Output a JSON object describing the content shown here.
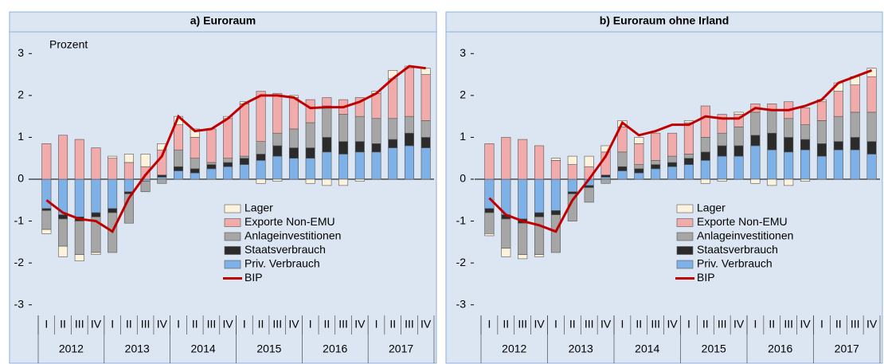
{
  "chart_data": [
    {
      "type": "stacked_bar",
      "title": "a) Euroraum",
      "y_label": "Prozent",
      "ylim": [
        -3.5,
        3.5
      ],
      "yticks": [
        3,
        2,
        1,
        0,
        -1,
        -2,
        -3
      ],
      "grid": false,
      "categories": [
        "I",
        "II",
        "III",
        "IV",
        "I",
        "II",
        "III",
        "IV",
        "I",
        "II",
        "III",
        "IV",
        "I",
        "II",
        "III",
        "IV",
        "I",
        "II",
        "III",
        "IV",
        "I",
        "II",
        "III",
        "IV"
      ],
      "x_groups": [
        "2012",
        "2013",
        "2014",
        "2015",
        "2016",
        "2017"
      ],
      "series": [
        {
          "name": "Priv. Verbrauch",
          "color": "#7eb1e8",
          "values": [
            -0.7,
            -0.85,
            -0.9,
            -0.8,
            -0.7,
            -0.3,
            -0.05,
            0.05,
            0.2,
            0.15,
            0.25,
            0.3,
            0.35,
            0.45,
            0.55,
            0.5,
            0.5,
            0.65,
            0.6,
            0.65,
            0.65,
            0.75,
            0.8,
            0.75
          ]
        },
        {
          "name": "Staatsverbrauch",
          "color": "#2b2b2b",
          "values": [
            -0.05,
            -0.1,
            -0.1,
            -0.1,
            -0.1,
            -0.05,
            0,
            0.05,
            0.1,
            0.1,
            0.1,
            0.1,
            0.15,
            0.15,
            0.25,
            0.25,
            0.25,
            0.35,
            0.3,
            0.25,
            0.2,
            0.2,
            0.3,
            0.25
          ]
        },
        {
          "name": "Anlageinvestitionen",
          "color": "#a6a6a6",
          "values": [
            -0.45,
            -0.65,
            -0.8,
            -0.85,
            -0.95,
            -0.7,
            -0.25,
            -0.1,
            0.4,
            0.25,
            0.05,
            0.1,
            0.05,
            0.3,
            0.3,
            0.45,
            0.6,
            0.75,
            0.65,
            0.6,
            0.6,
            0.5,
            0.4,
            0.4
          ]
        },
        {
          "name": "Exporte Non-EMU",
          "color": "#f2abab",
          "values": [
            0.85,
            1.05,
            0.95,
            0.75,
            0.5,
            0.4,
            0.3,
            0.6,
            0.6,
            0.5,
            0.8,
            0.95,
            1.25,
            1.2,
            0.95,
            0.75,
            0.55,
            0.2,
            0.35,
            0.45,
            0.6,
            0.95,
            1.15,
            1.1
          ]
        },
        {
          "name": "Lager",
          "color": "#fdf3dc",
          "values": [
            -0.1,
            -0.25,
            -0.15,
            -0.05,
            0.05,
            0.2,
            0.3,
            0.15,
            0.2,
            0.2,
            0,
            0.05,
            0.05,
            -0.1,
            -0.05,
            0.05,
            -0.1,
            -0.15,
            -0.15,
            -0.05,
            0.05,
            0.2,
            0.05,
            0.15
          ]
        },
        {
          "name": "BIP",
          "type": "line",
          "color": "#c00000",
          "values": [
            -0.5,
            -0.8,
            -0.95,
            -1.0,
            -1.25,
            -0.45,
            0.1,
            0.55,
            1.5,
            1.15,
            1.2,
            1.45,
            1.8,
            2.0,
            2.0,
            1.95,
            1.7,
            1.72,
            1.72,
            1.85,
            2.05,
            2.4,
            2.7,
            2.65
          ]
        }
      ]
    },
    {
      "type": "stacked_bar",
      "title": "b) Euroraum  ohne  Irland",
      "ylim": [
        -3.5,
        3.5
      ],
      "yticks": [
        3,
        2,
        1,
        0,
        -1,
        -2,
        -3
      ],
      "grid": false,
      "categories": [
        "I",
        "II",
        "III",
        "IV",
        "I",
        "II",
        "III",
        "IV",
        "I",
        "II",
        "III",
        "IV",
        "I",
        "II",
        "III",
        "IV",
        "I",
        "II",
        "III",
        "IV",
        "I",
        "II",
        "III",
        "IV"
      ],
      "x_groups": [
        "2012",
        "2013",
        "2014",
        "2015",
        "2016",
        "2017"
      ],
      "series": [
        {
          "name": "Priv. Verbrauch",
          "color": "#7eb1e8",
          "values": [
            -0.7,
            -0.85,
            -0.95,
            -0.8,
            -0.75,
            -0.3,
            -0.15,
            0.05,
            0.2,
            0.15,
            0.25,
            0.3,
            0.35,
            0.45,
            0.55,
            0.55,
            0.8,
            0.7,
            0.65,
            0.7,
            0.55,
            0.7,
            0.7,
            0.6
          ]
        },
        {
          "name": "Staatsverbrauch",
          "color": "#2b2b2b",
          "values": [
            -0.1,
            -0.1,
            -0.1,
            -0.1,
            -0.1,
            -0.05,
            -0.05,
            0.05,
            0.1,
            0.1,
            0.1,
            0.1,
            0.15,
            0.2,
            0.25,
            0.25,
            0.25,
            0.4,
            0.35,
            0.25,
            0.3,
            0.2,
            0.3,
            0.3
          ]
        },
        {
          "name": "Anlageinvestitionen",
          "color": "#a6a6a6",
          "values": [
            -0.5,
            -0.7,
            -0.75,
            -0.9,
            -0.9,
            -0.65,
            -0.35,
            -0.1,
            0.35,
            0.1,
            0.1,
            0.15,
            0.1,
            0.35,
            0.3,
            0.45,
            0.55,
            0.55,
            0.45,
            0.35,
            0.55,
            0.6,
            0.6,
            0.7
          ]
        },
        {
          "name": "Exporte Non-EMU",
          "color": "#f2abab",
          "values": [
            0.85,
            1.0,
            0.95,
            0.8,
            0.45,
            0.35,
            0.3,
            0.55,
            0.6,
            0.5,
            0.65,
            0.55,
            0.75,
            0.75,
            0.45,
            0.3,
            0.2,
            0.15,
            0.4,
            0.4,
            0.45,
            0.6,
            0.65,
            0.85
          ]
        },
        {
          "name": "Lager",
          "color": "#fdf3dc",
          "values": [
            -0.05,
            -0.2,
            -0.1,
            -0.05,
            0.05,
            0.2,
            0.25,
            0.15,
            0.15,
            0.15,
            0,
            0,
            0.05,
            -0.1,
            -0.05,
            0.05,
            -0.1,
            -0.15,
            -0.15,
            -0.05,
            0.05,
            0.2,
            0.2,
            0.2
          ]
        },
        {
          "name": "BIP",
          "type": "line",
          "color": "#c00000",
          "values": [
            -0.45,
            -0.85,
            -1.0,
            -1.1,
            -1.25,
            -0.5,
            0.0,
            0.55,
            1.35,
            1.05,
            1.15,
            1.3,
            1.3,
            1.5,
            1.45,
            1.45,
            1.7,
            1.65,
            1.65,
            1.75,
            1.9,
            2.3,
            2.45,
            2.6
          ]
        }
      ]
    }
  ]
}
